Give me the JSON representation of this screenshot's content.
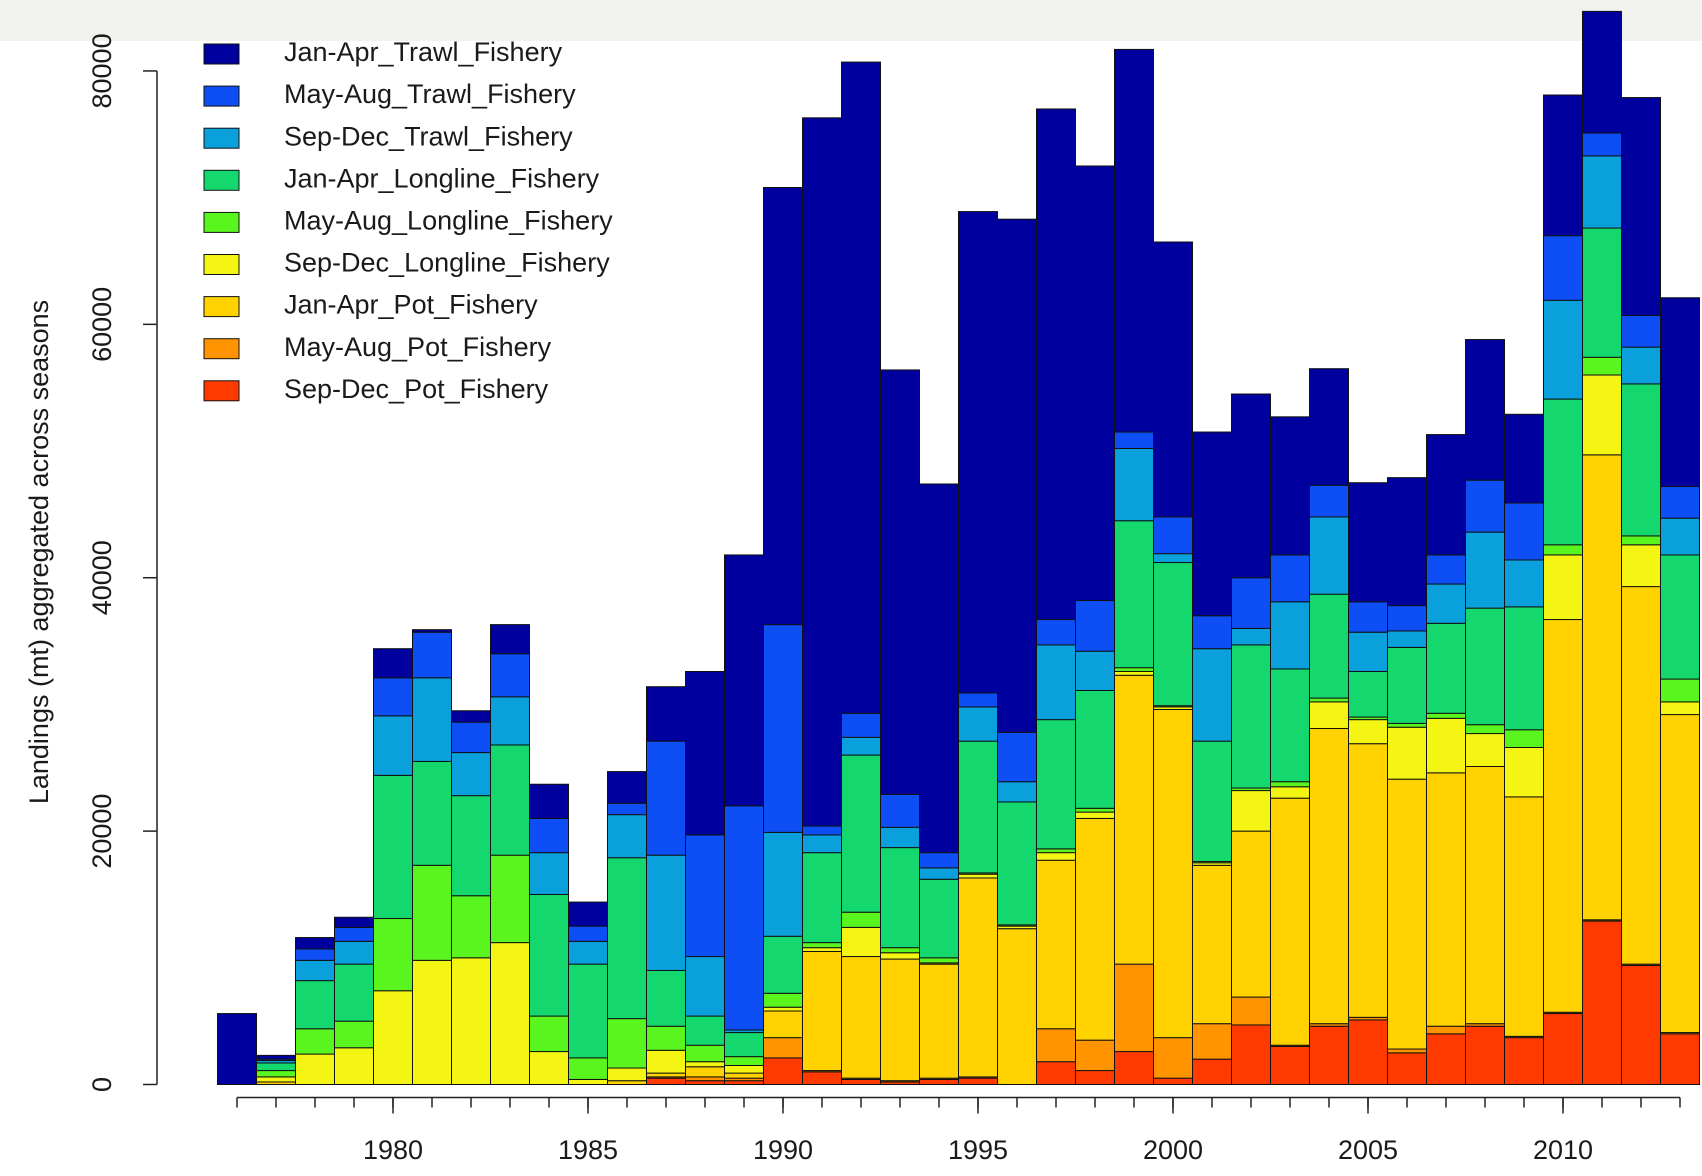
{
  "chart_data": {
    "type": "bar",
    "stacked": true,
    "y_label": "Landings (mt) aggregated across seasons",
    "x": [
      1976,
      1977,
      1978,
      1979,
      1980,
      1981,
      1982,
      1983,
      1984,
      1985,
      1986,
      1987,
      1988,
      1989,
      1990,
      1991,
      1992,
      1993,
      1994,
      1995,
      1996,
      1997,
      1998,
      1999,
      2000,
      2001,
      2002,
      2003,
      2004,
      2005,
      2006,
      2007,
      2008,
      2009,
      2010,
      2011,
      2012,
      2013
    ],
    "xlim": [
      1975.5,
      2013.5
    ],
    "xticks": [
      1980,
      1985,
      1990,
      1995,
      2000,
      2005,
      2010
    ],
    "ylim": [
      0,
      85600
    ],
    "yticks": [
      0,
      20000,
      40000,
      60000,
      80000
    ],
    "legend": "topleft",
    "series": [
      {
        "name": "Jan-Apr_Trawl_Fishery",
        "color": "#00009f",
        "values": [
          5600,
          300,
          900,
          800,
          2300,
          200,
          900,
          2300,
          2700,
          1900,
          2500,
          4300,
          12900,
          19800,
          34500,
          55900,
          51400,
          33500,
          29100,
          38000,
          40500,
          40300,
          34300,
          30200,
          21700,
          14500,
          14500,
          10900,
          9200,
          9400,
          10100,
          9500,
          11100,
          7000,
          11100,
          9600,
          17200,
          14900
        ]
      },
      {
        "name": "May-Aug_Trawl_Fishery",
        "color": "#0d4ff5",
        "values": [
          0,
          100,
          900,
          1100,
          3000,
          3600,
          2400,
          3400,
          2700,
          1200,
          900,
          9000,
          9600,
          17700,
          16400,
          700,
          1900,
          2600,
          1200,
          1100,
          3900,
          2000,
          4000,
          1300,
          2900,
          2600,
          4000,
          3700,
          2500,
          2400,
          2000,
          2300,
          4100,
          4500,
          5100,
          1800,
          2500,
          2500
        ]
      },
      {
        "name": "Sep-Dec_Trawl_Fishery",
        "color": "#0aa0dc",
        "values": [
          0,
          200,
          1600,
          1800,
          4700,
          6600,
          3400,
          3800,
          3300,
          1800,
          3400,
          9100,
          4700,
          200,
          8200,
          1400,
          1400,
          1600,
          900,
          2700,
          1600,
          5900,
          3100,
          5700,
          700,
          7300,
          1300,
          5300,
          6100,
          3100,
          1300,
          3100,
          6000,
          3700,
          7800,
          5700,
          2900,
          2900
        ]
      },
      {
        "name": "Jan-Apr_Longline_Fishery",
        "color": "#14d76e",
        "values": [
          0,
          600,
          3800,
          4500,
          11300,
          8200,
          7900,
          8700,
          9600,
          7400,
          12700,
          4400,
          2300,
          1900,
          4500,
          7100,
          12400,
          7900,
          6200,
          10400,
          9700,
          10200,
          9300,
          11600,
          11300,
          9500,
          11300,
          8900,
          8200,
          3600,
          6000,
          7100,
          9200,
          9700,
          11500,
          10200,
          12000,
          9800
        ]
      },
      {
        "name": "May-Aug_Longline_Fishery",
        "color": "#5af51e",
        "values": [
          0,
          500,
          2000,
          2100,
          5700,
          7500,
          4900,
          6900,
          2800,
          1700,
          3900,
          1900,
          1300,
          700,
          1100,
          400,
          1200,
          400,
          400,
          100,
          100,
          300,
          300,
          300,
          100,
          100,
          200,
          400,
          300,
          200,
          300,
          400,
          700,
          1400,
          800,
          1400,
          700,
          1800
        ]
      },
      {
        "name": "Sep-Dec_Longline_Fishery",
        "color": "#f5f514",
        "values": [
          0,
          400,
          2400,
          2900,
          7400,
          9800,
          10000,
          11200,
          2600,
          400,
          1000,
          1800,
          400,
          600,
          300,
          300,
          2300,
          500,
          100,
          300,
          200,
          600,
          500,
          300,
          200,
          200,
          3200,
          900,
          2100,
          1900,
          4100,
          4300,
          2600,
          3900,
          5100,
          6300,
          3300,
          1000
        ]
      },
      {
        "name": "Jan-Apr_Pot_Fishery",
        "color": "#ffd200",
        "values": [
          0,
          200,
          0,
          0,
          0,
          0,
          0,
          0,
          0,
          0,
          300,
          300,
          800,
          400,
          2100,
          9400,
          9600,
          9600,
          9000,
          15700,
          12300,
          13300,
          17500,
          22800,
          25900,
          12500,
          13100,
          19500,
          23300,
          21600,
          21300,
          20000,
          20300,
          18900,
          31000,
          36700,
          29800,
          25100
        ]
      },
      {
        "name": "May-Aug_Pot_Fishery",
        "color": "#ff9400",
        "values": [
          0,
          0,
          0,
          0,
          0,
          0,
          0,
          0,
          0,
          0,
          0,
          100,
          300,
          200,
          1600,
          100,
          100,
          100,
          100,
          100,
          0,
          2600,
          2400,
          6900,
          3200,
          2800,
          2200,
          100,
          200,
          200,
          300,
          600,
          200,
          100,
          100,
          100,
          100,
          100
        ]
      },
      {
        "name": "Sep-Dec_Pot_Fishery",
        "color": "#ff3a00",
        "values": [
          0,
          0,
          0,
          0,
          0,
          0,
          0,
          0,
          0,
          0,
          0,
          500,
          300,
          300,
          2100,
          1000,
          400,
          200,
          400,
          500,
          0,
          1800,
          1100,
          2600,
          500,
          2000,
          4700,
          3000,
          4600,
          5100,
          2500,
          4000,
          4600,
          3700,
          5600,
          12900,
          9400,
          4000
        ]
      }
    ]
  }
}
